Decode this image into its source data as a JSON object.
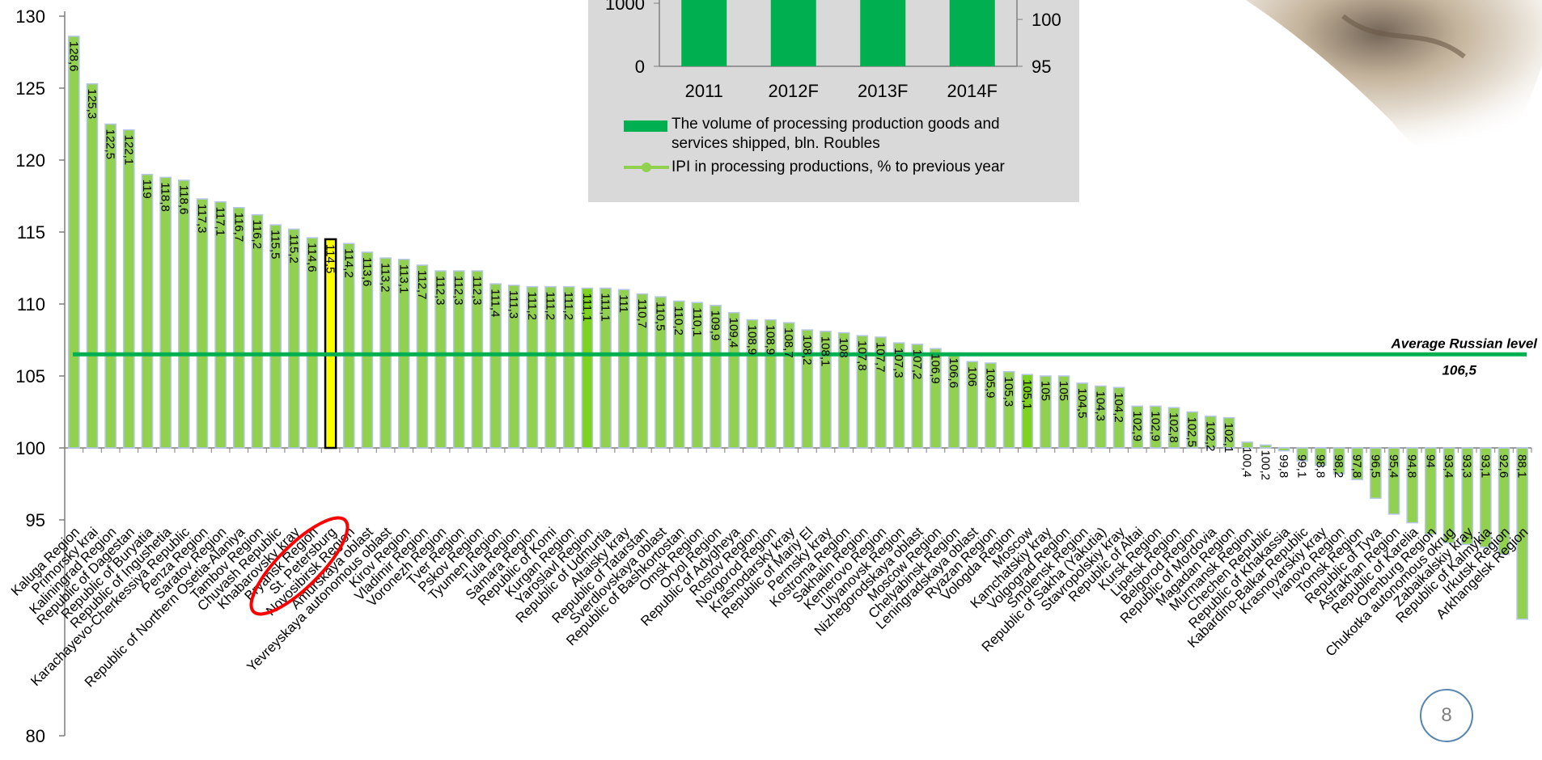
{
  "chart_data": [
    {
      "type": "bar",
      "title": "",
      "ylim": [
        80,
        130
      ],
      "yticks": [
        80,
        95,
        100,
        105,
        110,
        115,
        120,
        125,
        130
      ],
      "y_tick_labels": [
        "80",
        "95",
        "100",
        "105",
        "110",
        "115",
        "120",
        "125",
        "130"
      ],
      "baseline": 100,
      "categories": [
        "Kaluga Region",
        "Primorsky krai",
        "Kaliningrad Region",
        "Republic of Dagestan",
        "Republic of Buryatia",
        "Republic of Ingushetia",
        "Karachayevo-Cherkessiya Republic",
        "Penza Region",
        "Saratov Region",
        "Republic of Northern Osetia-Alaniya",
        "Tambov Region",
        "Chuvash Republic",
        "Khabarovsky kray",
        "Bryansk Region",
        "St. Petersburg",
        "Novosibirsk Region",
        "Amurskaya oblast",
        "Yevreyskaya autonomous oblast",
        "Kirov Region",
        "Vladimir Region",
        "Voronezh Region",
        "Tver Region",
        "Pskov Region",
        "Tyumen Region",
        "Tula Region",
        "Samara Region",
        "Republic of Komi",
        "Kurgan Region",
        "Yaroslavl Region",
        "Republic of Udmurtia",
        "Altaisky kray",
        "Republic of Tatarstan",
        "Sverdlovskaya oblast",
        "Republic of Bashkortostan",
        "Omsk Region",
        "Oryol Region",
        "Republic of Adygheya",
        "Rostov Region",
        "Novgorod Region",
        "Krasnodarsky kray",
        "Republic of Mariy El",
        "Permsky kray",
        "Kostroma Region",
        "Sakhalin Region",
        "Kemerovo Region",
        "Ulyanovsk Region",
        "Nizhegorodskaya oblast",
        "Moscow Region",
        "Chelyabinsk Region",
        "Leningradskaya oblast",
        "Ryazan Region",
        "Vologda Region",
        "Moscow",
        "Kamchatskiy kray",
        "Volgograd Region",
        "Smolensk Region",
        "Republic of Sakha (Yakutia)",
        "Stavropolskiy kray",
        "Republic of Altai",
        "Kursk Region",
        "Lipetsk Region",
        "Belgorod Region",
        "Republic of Mordovia",
        "Magadan Region",
        "Murmansk Region",
        "Chechen Republic",
        "Republic of Khakassia",
        "Kabardino-Balkar Republic",
        "Krasnoyarskiy kray",
        "Ivanovo Region",
        "Tomsk Region",
        "Republic of Tyva",
        "Astrakhan Region",
        "Republic of Karelia",
        "Orenburg Region",
        "Chukotka autonomous okrug",
        "Zabaikalskiy kray",
        "Republic of Kalmykia",
        "Irkutsk Region",
        "Arkhangelsk Region"
      ],
      "values": [
        128.6,
        125.3,
        122.5,
        122.1,
        119,
        118.8,
        118.6,
        117.3,
        117.1,
        116.7,
        116.2,
        115.5,
        115.2,
        114.6,
        114.5,
        114.2,
        113.6,
        113.2,
        113.1,
        112.7,
        112.3,
        112.3,
        112.3,
        111.4,
        111.3,
        111.2,
        111.2,
        111.2,
        111.1,
        111.1,
        111,
        110.7,
        110.5,
        110.2,
        110.1,
        109.9,
        109.4,
        108.9,
        108.9,
        108.7,
        108.2,
        108.1,
        108,
        107.8,
        107.7,
        107.3,
        107.2,
        106.9,
        106.6,
        106,
        105.9,
        105.3,
        105.1,
        105,
        105,
        104.5,
        104.3,
        104.2,
        102.9,
        102.9,
        102.8,
        102.5,
        102.2,
        102.1,
        100.4,
        100.2,
        99.8,
        99.1,
        98.8,
        98.2,
        97.8,
        96.5,
        95.4,
        94.8,
        94,
        93.4,
        93.3,
        93.1,
        92.6,
        88.1
      ],
      "value_labels": [
        "128,6",
        "125,3",
        "122,5",
        "122,1",
        "119",
        "118,8",
        "118,6",
        "117,3",
        "117,1",
        "116,7",
        "116,2",
        "115,5",
        "115,2",
        "114,6",
        "114,5",
        "114,2",
        "113,6",
        "113,2",
        "113,1",
        "112,7",
        "112,3",
        "112,3",
        "112,3",
        "111,4",
        "111,3",
        "111,2",
        "111,2",
        "111,2",
        "111,1",
        "111,1",
        "111",
        "110,7",
        "110,5",
        "110,2",
        "110,1",
        "109,9",
        "109,4",
        "108,9",
        "108,9",
        "108,7",
        "108,2",
        "108,1",
        "108",
        "107,8",
        "107,7",
        "107,3",
        "107,2",
        "106,9",
        "106,6",
        "106",
        "105,9",
        "105,3",
        "105,1",
        "105",
        "105",
        "104,5",
        "104,3",
        "104,2",
        "102,9",
        "102,9",
        "102,8",
        "102,5",
        "102,2",
        "102,1",
        "100,4",
        "100,2",
        "99,8",
        "99,1",
        "98,8",
        "98,2",
        "97,8",
        "96,5",
        "95,4",
        "94,8",
        "94",
        "93,4",
        "93,3",
        "93,1",
        "92,6",
        "88,1"
      ],
      "highlighted_category": "St. Petersburg",
      "average_line": {
        "label": "Average Russian level",
        "value": 106.5,
        "value_label": "106,5"
      },
      "colors": {
        "bar": "#92d050",
        "bar_edge": "#b4c7e7",
        "bright_bar": "#7ed321",
        "highlight_bar": "#ffff00",
        "highlight_edge": "#000000",
        "average_line": "#00b050",
        "annotation": "#ff0000"
      },
      "grid": false
    },
    {
      "type": "bar",
      "title": "",
      "categories": [
        "2011",
        "2012F",
        "2013F",
        "2014F"
      ],
      "left_axis_tick_labels": [
        "0",
        "1000"
      ],
      "right_axis_tick_labels": [
        "95",
        "100"
      ],
      "series": [
        {
          "name": "The volume of processing production goods and services shipped, bln. Roubles",
          "type": "bar",
          "color": "#00b050"
        },
        {
          "name": "IPI in processing productions, % to previous year",
          "type": "line",
          "color": "#92d050"
        }
      ],
      "legend_position": "bottom"
    }
  ],
  "page": {
    "number": "8"
  }
}
